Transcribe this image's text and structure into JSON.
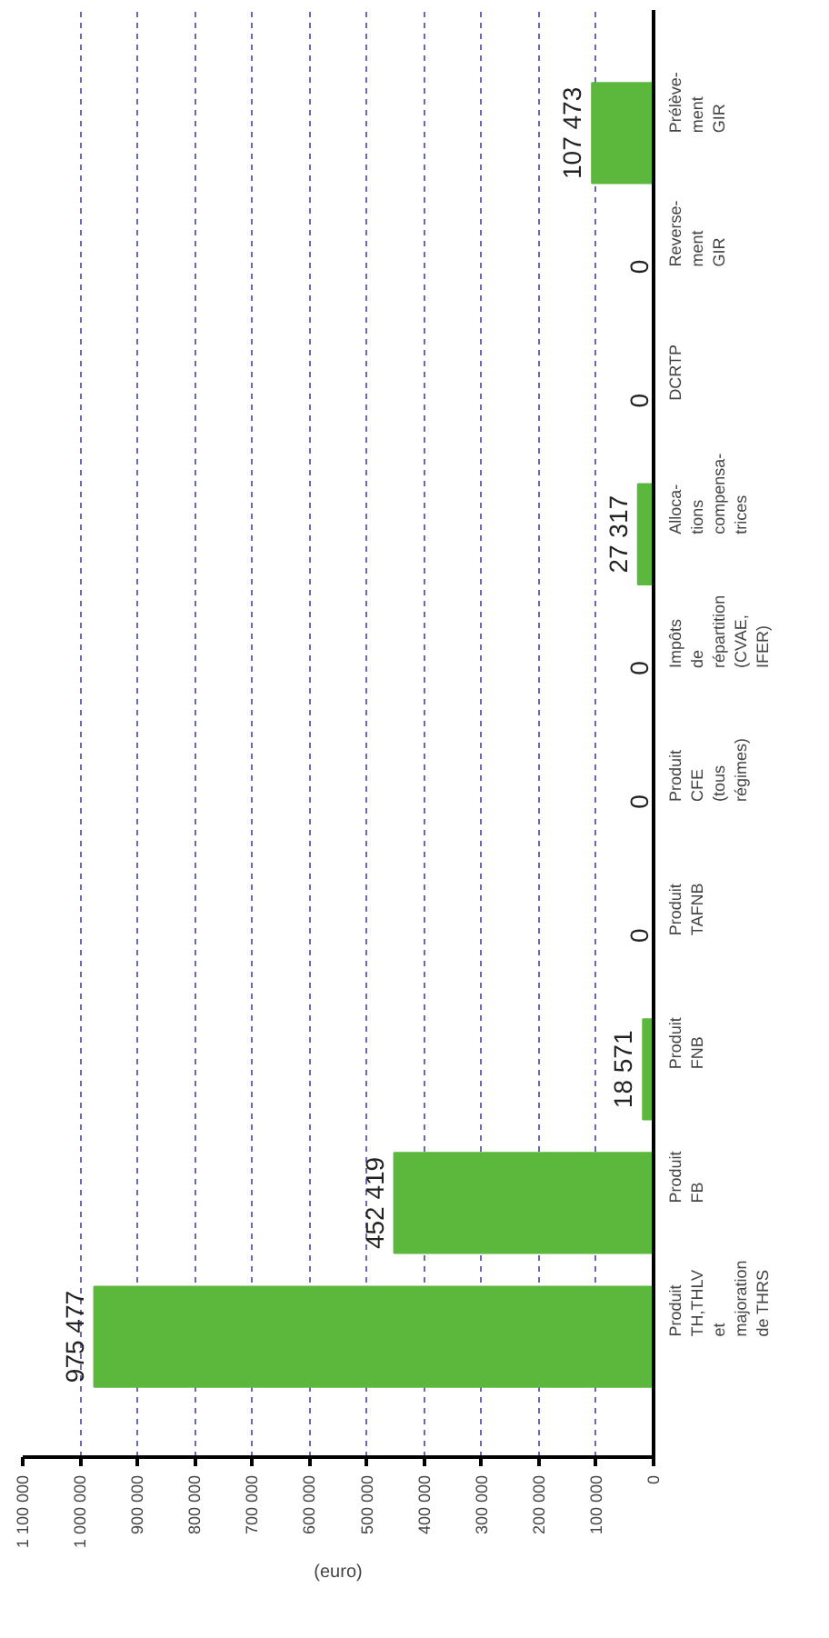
{
  "chart_data": {
    "type": "bar",
    "orientation": "horizontal",
    "xlabel": "(euro)",
    "categories": [
      "Prélève-\nment\nGIR",
      "Reverse-\nment\nGIR",
      "DCRTP",
      "Alloca-\ntions\ncompensa-\ntrices",
      "Impôts\nde\nrépartition\n(CVAE,\nIFER)",
      "Produit\nCFE\n(tous\nrégimes)",
      "Produit\nTAFNB",
      "Produit\nFNB",
      "Produit\nFB",
      "Produit\nTH,THLV\net\nmajoration\nde THRS"
    ],
    "values": [
      107473,
      0,
      0,
      27317,
      0,
      0,
      0,
      18571,
      452419,
      975477
    ],
    "value_labels": [
      "107 473",
      "0",
      "0",
      "27 317",
      "0",
      "0",
      "0",
      "18 571",
      "452 419",
      "975 477"
    ],
    "color": "#5cb83c",
    "xlim": [
      1100000,
      0
    ],
    "xticks": [
      {
        "value": 0,
        "label": "0"
      },
      {
        "value": 100000,
        "label": "100 000"
      },
      {
        "value": 200000,
        "label": "200 000"
      },
      {
        "value": 300000,
        "label": "300 000"
      },
      {
        "value": 400000,
        "label": "400 000"
      },
      {
        "value": 500000,
        "label": "500 000"
      },
      {
        "value": 600000,
        "label": "600 000"
      },
      {
        "value": 700000,
        "label": "700 000"
      },
      {
        "value": 800000,
        "label": "800 000"
      },
      {
        "value": 900000,
        "label": "900 000"
      },
      {
        "value": 1000000,
        "label": "1 000 000"
      },
      {
        "value": 1100000,
        "label": "1 100 000"
      }
    ],
    "grid": "x"
  }
}
